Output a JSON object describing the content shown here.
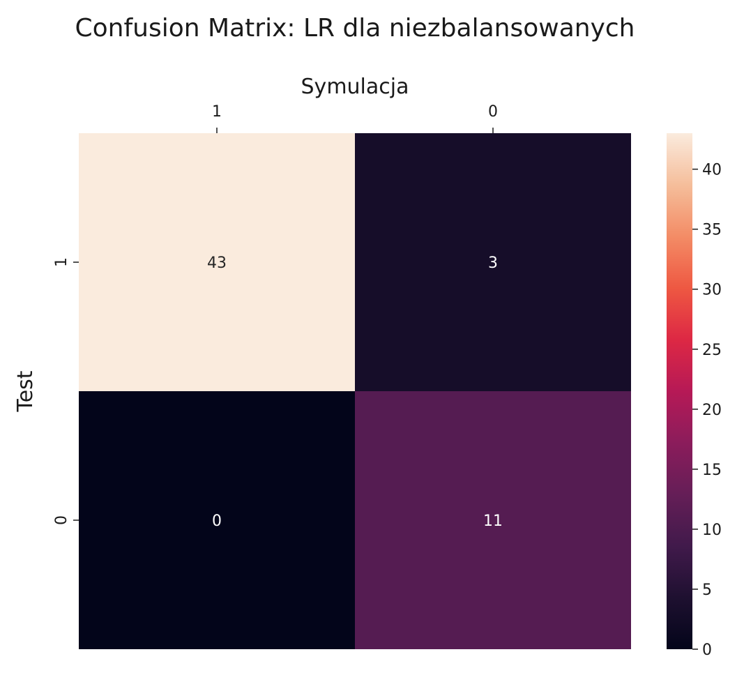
{
  "chart_data": {
    "type": "heatmap",
    "title": "Confusion Matrix: LR dla niezbalansowanych",
    "xlabel": "Symulacja",
    "ylabel": "Test",
    "x_categories": [
      "1",
      "0"
    ],
    "y_categories": [
      "1",
      "0"
    ],
    "values": [
      [
        43,
        3
      ],
      [
        0,
        11
      ]
    ],
    "colorbar": {
      "min": 0,
      "max": 43,
      "ticks": [
        0,
        5,
        10,
        15,
        20,
        25,
        30,
        35,
        40
      ]
    },
    "colormap": "rocket",
    "xaxis_position": "top",
    "grid": false
  }
}
